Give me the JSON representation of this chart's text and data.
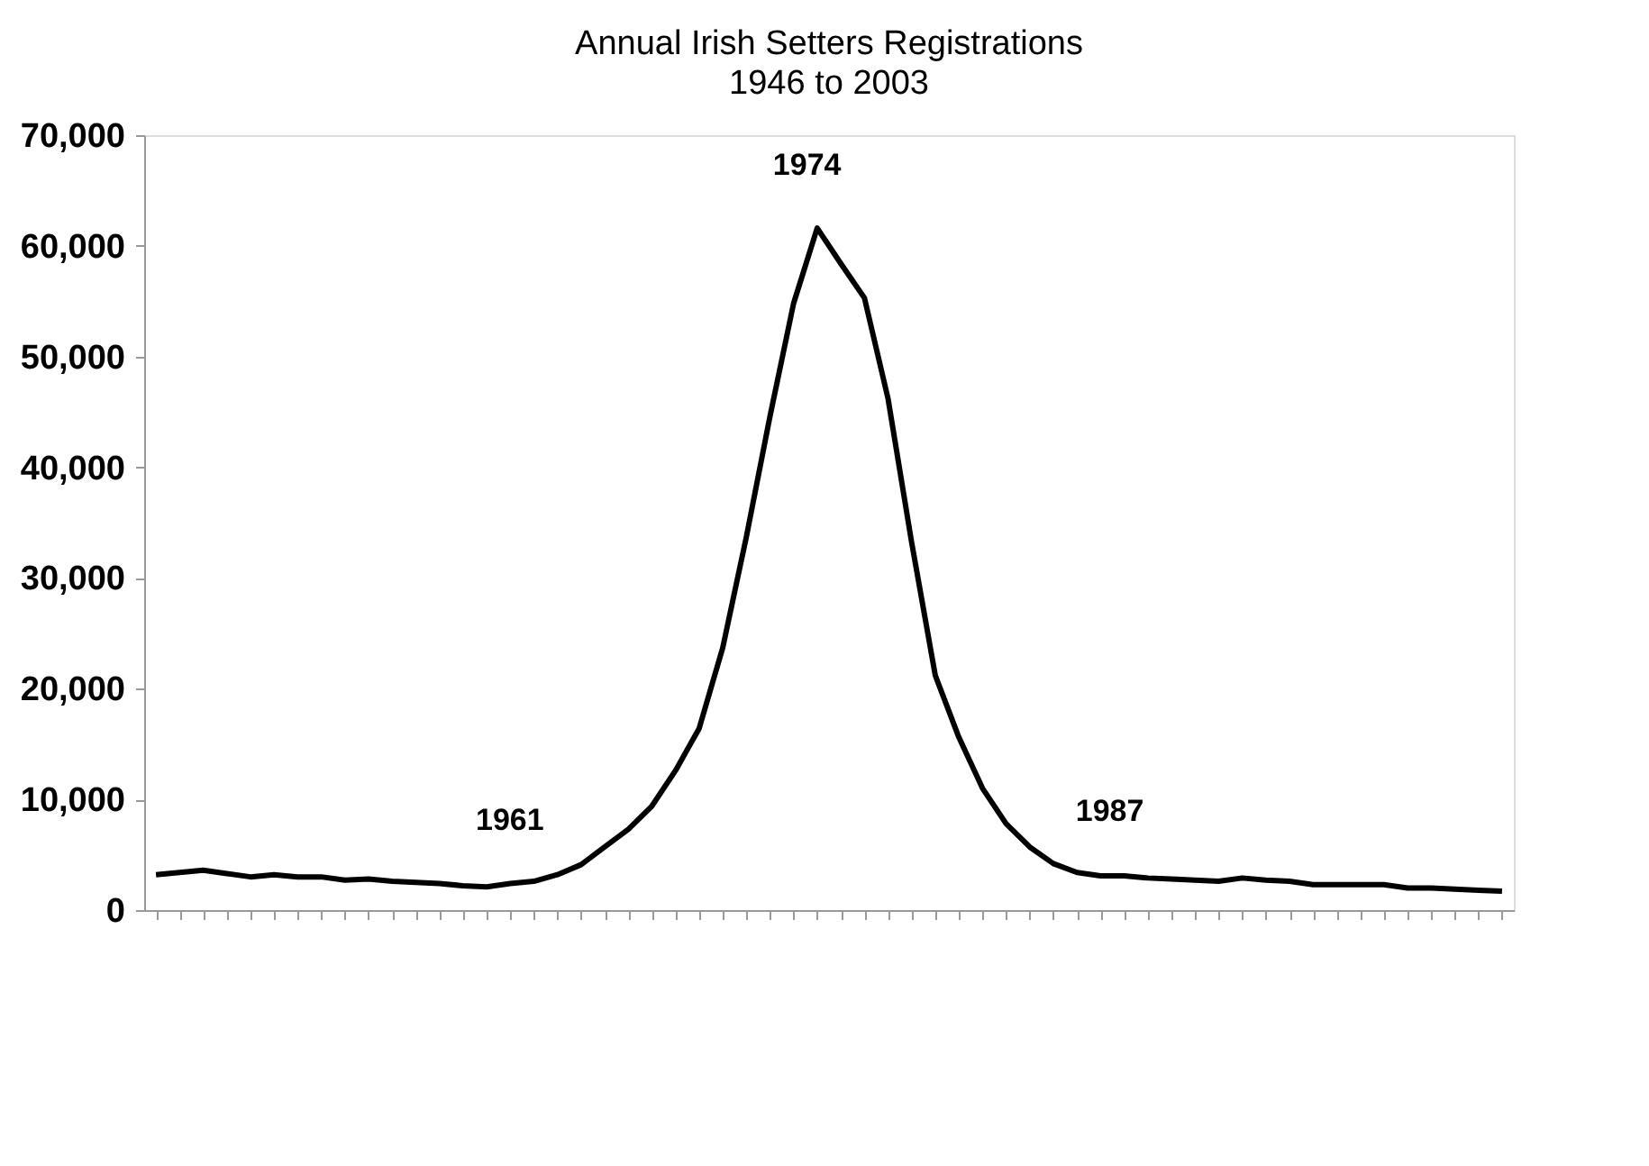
{
  "chart_data": {
    "type": "line",
    "title": "Annual Irish Setters Registrations",
    "subtitle": "1946 to 2003",
    "categories": [
      null,
      null,
      null,
      null,
      null,
      null,
      null,
      null,
      null,
      null,
      null,
      null,
      null,
      null,
      null,
      null,
      null,
      null,
      null,
      null,
      null,
      null,
      null,
      null,
      null,
      null,
      null,
      null,
      null,
      null,
      null,
      null,
      null,
      null,
      null,
      null,
      null,
      null,
      null,
      null,
      null,
      null,
      null,
      null,
      null,
      null,
      null,
      null,
      null,
      null,
      null,
      null,
      null,
      null,
      null,
      null,
      null,
      null
    ],
    "series": [
      {
        "color": "#000000",
        "values": [
          3200,
          3400,
          3600,
          3300,
          3000,
          3200,
          3000,
          3000,
          2700,
          2800,
          2600,
          2500,
          2400,
          2200,
          2100,
          2400,
          2600,
          3200,
          4100,
          5700,
          7300,
          9400,
          12600,
          16400,
          23700,
          33700,
          44600,
          54800,
          61600,
          58400,
          55300,
          46200,
          33200,
          21200,
          15600,
          11000,
          7800,
          5700,
          4200,
          3400,
          3100,
          3100,
          2900,
          2800,
          2700,
          2600,
          2900,
          2700,
          2600,
          2300,
          2300,
          2300,
          2300,
          2000,
          2000,
          1900,
          1800,
          1700
        ]
      }
    ],
    "annotations": [
      "1961",
      "1974",
      "1987"
    ],
    "ylim": [
      0,
      70000
    ],
    "yticks": [
      0,
      {
        "value": 10000,
        "label": "10,000"
      },
      {
        "value": 20000,
        "label": "20,000"
      },
      {
        "value": 30000,
        "label": "30,000"
      },
      {
        "value": 40000,
        "label": "40,000"
      },
      {
        "value": 50000,
        "label": "50,000"
      },
      {
        "value": 60000,
        "label": "60,000"
      },
      {
        "value": 70000,
        "label": "70,000"
      }
    ],
    "tick_labels": "y",
    "grid": false,
    "legend": false,
    "marker": "none",
    "line_style": "solid"
  }
}
